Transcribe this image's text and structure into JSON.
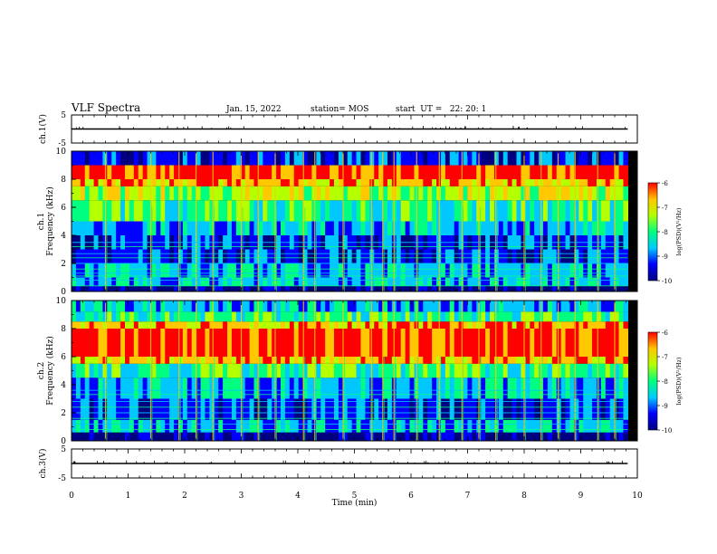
{
  "header": {
    "title": "VLF Spectra",
    "date": "Jan. 15, 2022",
    "station": "station= MOS",
    "start": "start  UT =   22: 20: 1"
  },
  "chart_data": [
    {
      "type": "line",
      "panel": "ch1-voltage",
      "ylabel": "ch.1(V)",
      "ylim": [
        -5,
        5
      ],
      "yticks": [
        "5",
        "-5"
      ],
      "series": [
        {
          "x": [
            0,
            9.83
          ],
          "y": [
            0,
            0
          ]
        }
      ],
      "xlim": [
        0,
        10
      ]
    },
    {
      "type": "heatmap",
      "panel": "ch1-spectrogram",
      "ylabel": "ch.1\nFrequency (kHz)",
      "ylim": [
        0,
        10
      ],
      "yticks": [
        "0",
        "2",
        "4",
        "6",
        "8",
        "10"
      ],
      "xlim": [
        0,
        10
      ],
      "colorbar": {
        "label": "log(PSD)(V²/Hz)",
        "range": [
          -10,
          -6
        ],
        "ticks": [
          "-6",
          "-7",
          "-8",
          "-9",
          "-10"
        ]
      },
      "colors": [
        "#000080",
        "#0000ff",
        "#00c8ff",
        "#00ff80",
        "#b4ff00",
        "#ffc800",
        "#ff0000"
      ],
      "bands": [
        {
          "f": [
            0.0,
            0.4
          ],
          "level": 0
        },
        {
          "f": [
            0.4,
            1.0
          ],
          "level": 2
        },
        {
          "f": [
            1.0,
            2.0
          ],
          "level": 2
        },
        {
          "f": [
            2.0,
            3.0
          ],
          "level": 1
        },
        {
          "f": [
            3.0,
            4.0
          ],
          "level": 1
        },
        {
          "f": [
            4.0,
            5.0
          ],
          "level": 2
        },
        {
          "f": [
            5.0,
            6.5
          ],
          "level": 3
        },
        {
          "f": [
            6.5,
            7.5
          ],
          "level": 4
        },
        {
          "f": [
            7.5,
            8.0
          ],
          "level": 5
        },
        {
          "f": [
            8.0,
            9.0
          ],
          "level": 6
        },
        {
          "f": [
            9.0,
            10.0
          ],
          "level": 1
        }
      ],
      "lines_khz": [
        0.4,
        0.8,
        1.1,
        1.3,
        1.6,
        2.0,
        2.4,
        2.7,
        3.2,
        3.5
      ]
    },
    {
      "type": "heatmap",
      "panel": "ch2-spectrogram",
      "ylabel": "ch.2\nFrequency (kHz)",
      "ylim": [
        0,
        10
      ],
      "yticks": [
        "0",
        "2",
        "4",
        "6",
        "8",
        "10"
      ],
      "xlim": [
        0,
        10
      ],
      "colorbar": {
        "label": "log(PSD)(V²/Hz)",
        "range": [
          -10,
          -6
        ],
        "ticks": [
          "-6",
          "-7",
          "-8",
          "-9",
          "-10"
        ]
      },
      "colors": [
        "#000080",
        "#0000ff",
        "#00c8ff",
        "#00ff80",
        "#b4ff00",
        "#ffc800",
        "#ff0000"
      ],
      "bands": [
        {
          "f": [
            0.0,
            0.6
          ],
          "level": 0
        },
        {
          "f": [
            0.6,
            1.5
          ],
          "level": 2
        },
        {
          "f": [
            1.5,
            3.0
          ],
          "level": 1
        },
        {
          "f": [
            3.0,
            4.5
          ],
          "level": 2
        },
        {
          "f": [
            4.5,
            5.5
          ],
          "level": 3
        },
        {
          "f": [
            5.5,
            6.0
          ],
          "level": 5
        },
        {
          "f": [
            6.0,
            8.0
          ],
          "level": 6
        },
        {
          "f": [
            8.0,
            8.5
          ],
          "level": 5
        },
        {
          "f": [
            8.5,
            9.2
          ],
          "level": 3
        },
        {
          "f": [
            9.2,
            10.0
          ],
          "level": 2
        }
      ],
      "lines_khz": [
        0.8,
        1.2,
        1.6,
        2.0,
        2.4,
        2.8,
        3.3,
        3.6
      ]
    },
    {
      "type": "line",
      "panel": "ch3-voltage",
      "ylabel": "ch.3(V)",
      "ylim": [
        -5,
        5
      ],
      "yticks": [
        "5",
        "-5"
      ],
      "series": [
        {
          "x": [
            0,
            9.83
          ],
          "y": [
            0,
            0
          ]
        }
      ],
      "xlim": [
        0,
        10
      ],
      "xlabel": "Time  (min)",
      "xticks": [
        "0",
        "1",
        "2",
        "3",
        "4",
        "5",
        "6",
        "7",
        "8",
        "9",
        "10"
      ]
    }
  ],
  "data_end_min": 9.83,
  "burst_times_min": [
    0.6,
    1.4,
    1.9,
    2.2,
    2.5,
    3.0,
    3.3,
    3.6,
    4.1,
    4.3,
    4.8,
    5.3,
    5.5,
    5.7,
    6.1,
    6.5,
    6.9,
    7.2,
    7.5,
    8.0,
    8.3,
    8.6,
    8.9,
    9.3,
    9.6
  ]
}
